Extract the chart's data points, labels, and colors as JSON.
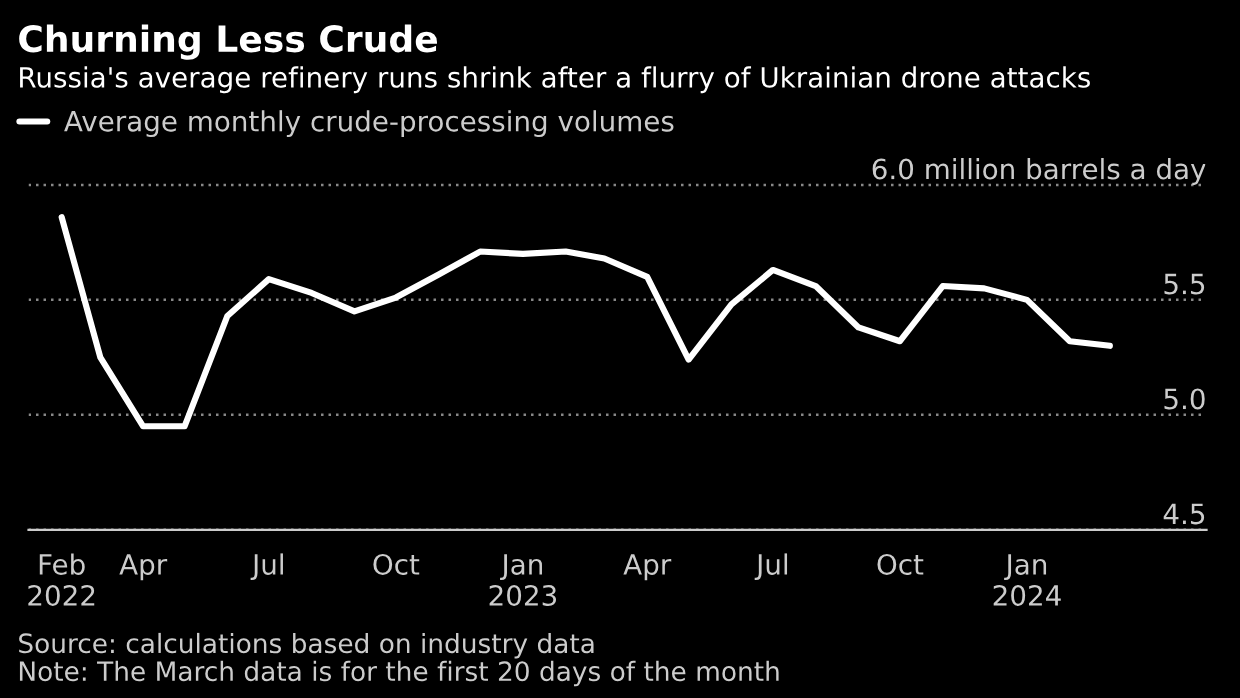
{
  "chart_data": {
    "type": "line",
    "title": "Churning Less Crude",
    "subtitle": "Russia's average refinery runs shrink after a flurry of Ukrainian drone attacks",
    "x": [
      "2022-02",
      "2022-03",
      "2022-04",
      "2022-05",
      "2022-06",
      "2022-07",
      "2022-08",
      "2022-09",
      "2022-10",
      "2022-11",
      "2022-12",
      "2023-01",
      "2023-02",
      "2023-03",
      "2023-04",
      "2023-05",
      "2023-06",
      "2023-07",
      "2023-08",
      "2023-09",
      "2023-10",
      "2023-11",
      "2023-12",
      "2024-01",
      "2024-02",
      "2024-03"
    ],
    "series": [
      {
        "name": "Average monthly crude-processing volumes",
        "color": "#ffffff",
        "values": [
          5.86,
          5.25,
          4.95,
          4.95,
          5.43,
          5.59,
          5.53,
          5.45,
          5.51,
          5.61,
          5.71,
          5.7,
          5.71,
          5.68,
          5.6,
          5.24,
          5.48,
          5.63,
          5.56,
          5.38,
          5.32,
          5.56,
          5.55,
          5.5,
          5.32,
          5.3
        ]
      }
    ],
    "xlim": [
      "2022-01-08",
      "2024-05-10"
    ],
    "xticks": [
      {
        "value": "2022-02",
        "label": "Feb\n2022"
      },
      {
        "value": "2022-04",
        "label": "Apr"
      },
      {
        "value": "2022-07",
        "label": "Jul"
      },
      {
        "value": "2022-10",
        "label": "Oct"
      },
      {
        "value": "2023-01",
        "label": "Jan\n2023"
      },
      {
        "value": "2023-04",
        "label": "Apr"
      },
      {
        "value": "2023-07",
        "label": "Jul"
      },
      {
        "value": "2023-10",
        "label": "Oct"
      },
      {
        "value": "2024-01",
        "label": "Jan\n2024"
      }
    ],
    "ylim": [
      4.5,
      6.2
    ],
    "yticks": [
      4.5,
      {
        "value": 5.0,
        "label": "5.0"
      },
      5.5,
      {
        "value": 6.0,
        "label": "6.0 million barrels a day"
      }
    ],
    "grid": "y",
    "legend": "top left",
    "marker": "none",
    "line_style": "solid",
    "annotations": [
      "Source: calculations based on industry data",
      "Note: The March data is for the first 20 days of the month"
    ]
  }
}
